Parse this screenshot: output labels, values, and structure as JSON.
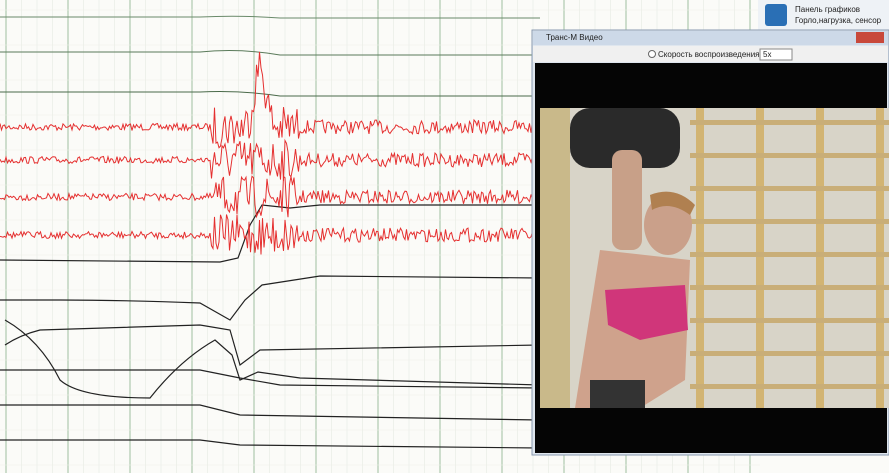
{
  "panel": {
    "title": "Панель графиков",
    "subtitle": "Горло,нагрузка, сенсор"
  },
  "video_window": {
    "title": "Транс-М Видео",
    "speed_label": "Скорость воспроизведения",
    "speed_value": "5x"
  }
}
